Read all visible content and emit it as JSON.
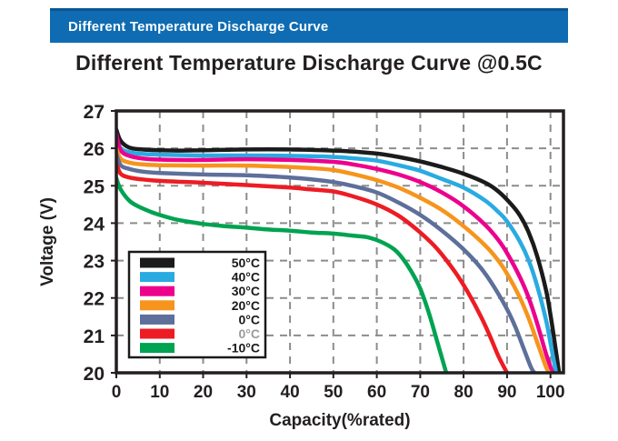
{
  "banner": {
    "title": "Different Temperature Discharge Curve",
    "bg_color": "#0f6cb2",
    "text_color": "#ffffff"
  },
  "page_title": "Different Temperature Discharge Curve @0.5C",
  "chart_data": {
    "type": "line",
    "title": "Different Temperature Discharge Curve @0.5C",
    "xlabel": "Capacity(%rated)",
    "ylabel": "Voltage (V)",
    "xlim": [
      0,
      103
    ],
    "ylim": [
      20,
      27
    ],
    "x_ticks": [
      0,
      10,
      20,
      30,
      40,
      50,
      60,
      70,
      80,
      90,
      100
    ],
    "y_ticks": [
      20,
      21,
      22,
      23,
      24,
      25,
      26,
      27
    ],
    "grid": true,
    "grid_color": "#8c8c8c",
    "axis_color": "#231f20",
    "legend_position": "lower-left-inside",
    "series": [
      {
        "name": "50℃",
        "legend_label": "50°C",
        "color": "#1b1b1b",
        "label_color": "#1a1a1a",
        "points": [
          [
            0,
            26.5
          ],
          [
            1,
            26.2
          ],
          [
            3,
            26.02
          ],
          [
            6,
            25.97
          ],
          [
            10,
            25.95
          ],
          [
            15,
            25.94
          ],
          [
            20,
            25.95
          ],
          [
            30,
            25.97
          ],
          [
            40,
            25.97
          ],
          [
            50,
            25.94
          ],
          [
            55,
            25.91
          ],
          [
            60,
            25.86
          ],
          [
            65,
            25.77
          ],
          [
            70,
            25.65
          ],
          [
            75,
            25.5
          ],
          [
            80,
            25.32
          ],
          [
            85,
            25.08
          ],
          [
            88,
            24.85
          ],
          [
            91,
            24.5
          ],
          [
            93,
            24.2
          ],
          [
            95,
            23.75
          ],
          [
            97,
            23.1
          ],
          [
            99,
            22.2
          ],
          [
            100,
            21.55
          ],
          [
            101,
            20.8
          ],
          [
            102,
            20.0
          ]
        ]
      },
      {
        "name": "40℃",
        "legend_label": "40°C",
        "color": "#29abe2",
        "label_color": "#1a1a1a",
        "points": [
          [
            0,
            26.3
          ],
          [
            1,
            26.0
          ],
          [
            3,
            25.9
          ],
          [
            6,
            25.85
          ],
          [
            10,
            25.83
          ],
          [
            20,
            25.81
          ],
          [
            30,
            25.81
          ],
          [
            40,
            25.8
          ],
          [
            50,
            25.77
          ],
          [
            55,
            25.73
          ],
          [
            60,
            25.67
          ],
          [
            65,
            25.55
          ],
          [
            70,
            25.4
          ],
          [
            75,
            25.18
          ],
          [
            80,
            24.95
          ],
          [
            85,
            24.6
          ],
          [
            88,
            24.3
          ],
          [
            90,
            24.05
          ],
          [
            93,
            23.5
          ],
          [
            95,
            23.0
          ],
          [
            97,
            22.3
          ],
          [
            99,
            21.4
          ],
          [
            100,
            20.8
          ],
          [
            101.3,
            20.0
          ]
        ]
      },
      {
        "name": "30℃",
        "legend_label": "30°C",
        "color": "#ec008c",
        "label_color": "#1a1a1a",
        "points": [
          [
            0,
            26.38
          ],
          [
            1,
            25.95
          ],
          [
            3,
            25.8
          ],
          [
            6,
            25.73
          ],
          [
            10,
            25.7
          ],
          [
            20,
            25.69
          ],
          [
            30,
            25.71
          ],
          [
            40,
            25.69
          ],
          [
            50,
            25.64
          ],
          [
            55,
            25.56
          ],
          [
            60,
            25.45
          ],
          [
            65,
            25.3
          ],
          [
            70,
            25.1
          ],
          [
            75,
            24.82
          ],
          [
            80,
            24.45
          ],
          [
            85,
            23.95
          ],
          [
            88,
            23.55
          ],
          [
            90,
            23.2
          ],
          [
            93,
            22.55
          ],
          [
            95,
            22.0
          ],
          [
            97,
            21.3
          ],
          [
            99,
            20.5
          ],
          [
            100.5,
            20.0
          ]
        ]
      },
      {
        "name": "20℃",
        "legend_label": "20°C",
        "color": "#f7941d",
        "label_color": "#1a1a1a",
        "points": [
          [
            0,
            26.0
          ],
          [
            1,
            25.72
          ],
          [
            3,
            25.62
          ],
          [
            6,
            25.57
          ],
          [
            10,
            25.55
          ],
          [
            20,
            25.54
          ],
          [
            30,
            25.54
          ],
          [
            40,
            25.5
          ],
          [
            45,
            25.47
          ],
          [
            50,
            25.42
          ],
          [
            55,
            25.3
          ],
          [
            60,
            25.15
          ],
          [
            65,
            24.95
          ],
          [
            70,
            24.68
          ],
          [
            75,
            24.35
          ],
          [
            80,
            23.92
          ],
          [
            85,
            23.4
          ],
          [
            88,
            23.0
          ],
          [
            90,
            22.65
          ],
          [
            93,
            22.0
          ],
          [
            95,
            21.45
          ],
          [
            97,
            20.8
          ],
          [
            99,
            20.15
          ],
          [
            99.8,
            20.0
          ]
        ]
      },
      {
        "name": "0℃",
        "legend_label": "0°C",
        "color": "#5d6f9a",
        "label_color": "#1a1a1a",
        "points": [
          [
            0,
            25.85
          ],
          [
            1,
            25.55
          ],
          [
            3,
            25.45
          ],
          [
            6,
            25.38
          ],
          [
            10,
            25.34
          ],
          [
            20,
            25.3
          ],
          [
            30,
            25.28
          ],
          [
            40,
            25.22
          ],
          [
            45,
            25.17
          ],
          [
            50,
            25.1
          ],
          [
            55,
            24.98
          ],
          [
            60,
            24.82
          ],
          [
            65,
            24.55
          ],
          [
            70,
            24.22
          ],
          [
            75,
            23.8
          ],
          [
            80,
            23.3
          ],
          [
            84,
            22.8
          ],
          [
            87,
            22.3
          ],
          [
            90,
            21.7
          ],
          [
            92,
            21.2
          ],
          [
            94,
            20.6
          ],
          [
            95.5,
            20.15
          ],
          [
            96.3,
            20.0
          ]
        ]
      },
      {
        "name": "0℃ ",
        "legend_label": "0°C",
        "color": "#ed1c24",
        "label_color": "#9b9b9b",
        "points": [
          [
            0,
            25.6
          ],
          [
            1,
            25.32
          ],
          [
            3,
            25.22
          ],
          [
            6,
            25.17
          ],
          [
            10,
            25.13
          ],
          [
            20,
            25.08
          ],
          [
            30,
            25.02
          ],
          [
            40,
            24.95
          ],
          [
            45,
            24.9
          ],
          [
            50,
            24.85
          ],
          [
            55,
            24.7
          ],
          [
            60,
            24.5
          ],
          [
            65,
            24.2
          ],
          [
            70,
            23.75
          ],
          [
            74,
            23.3
          ],
          [
            78,
            22.7
          ],
          [
            81,
            22.15
          ],
          [
            84,
            21.5
          ],
          [
            86,
            21.0
          ],
          [
            88,
            20.45
          ],
          [
            90,
            20.0
          ]
        ]
      },
      {
        "name": "-10℃",
        "legend_label": "-10°C",
        "color": "#00a351",
        "label_color": "#1a1a1a",
        "points": [
          [
            0,
            25.2
          ],
          [
            1,
            24.9
          ],
          [
            3,
            24.6
          ],
          [
            5,
            24.45
          ],
          [
            8,
            24.3
          ],
          [
            10,
            24.22
          ],
          [
            13,
            24.12
          ],
          [
            16,
            24.05
          ],
          [
            20,
            23.98
          ],
          [
            25,
            23.92
          ],
          [
            30,
            23.88
          ],
          [
            35,
            23.83
          ],
          [
            40,
            23.8
          ],
          [
            45,
            23.75
          ],
          [
            50,
            23.72
          ],
          [
            55,
            23.66
          ],
          [
            58,
            23.62
          ],
          [
            61,
            23.5
          ],
          [
            64,
            23.3
          ],
          [
            66,
            23.05
          ],
          [
            68,
            22.7
          ],
          [
            70,
            22.25
          ],
          [
            72,
            21.6
          ],
          [
            74,
            20.8
          ],
          [
            76,
            20.0
          ]
        ]
      }
    ]
  }
}
